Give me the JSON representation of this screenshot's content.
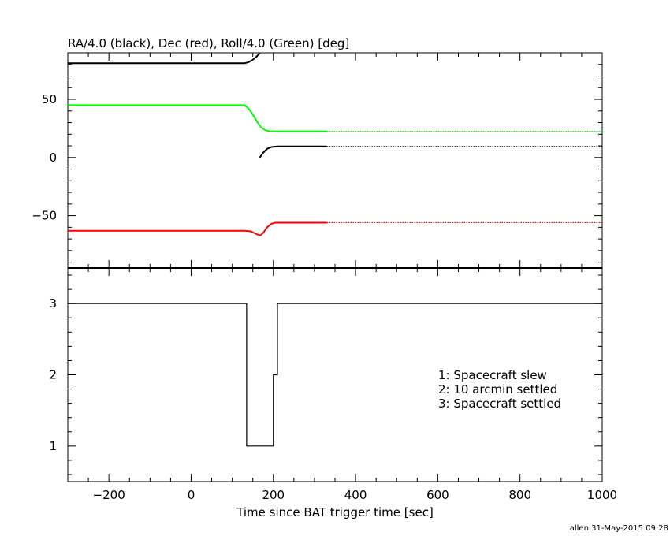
{
  "chart_data": [
    {
      "type": "line",
      "title": "RA/4.0 (black), Dec (red), Roll/4.0 (Green) [deg]",
      "xlim": [
        -300,
        1000
      ],
      "ylim": [
        -95,
        90
      ],
      "yticks": [
        -50,
        0,
        50
      ],
      "grid": false,
      "series": [
        {
          "color": "#000000",
          "segments": [
            [
              [
                -300,
                81
              ],
              [
                130,
                81
              ],
              [
                140,
                82
              ],
              [
                150,
                84
              ],
              [
                160,
                87
              ],
              [
                167,
                90
              ]
            ],
            [
              [
                167,
                0
              ],
              [
                175,
                4
              ],
              [
                185,
                7.5
              ],
              [
                195,
                9
              ],
              [
                210,
                9.5
              ],
              [
                330,
                9.5
              ]
            ]
          ],
          "dotted": [
            [
              330,
              9.5
            ],
            [
              1000,
              9.5
            ]
          ]
        },
        {
          "color": "#ff0000",
          "segments": [
            [
              [
                -300,
                -63
              ],
              [
                130,
                -63
              ],
              [
                145,
                -63.5
              ],
              [
                160,
                -66
              ],
              [
                168,
                -67
              ],
              [
                175,
                -65
              ],
              [
                185,
                -60
              ],
              [
                195,
                -57
              ],
              [
                205,
                -56
              ],
              [
                330,
                -56
              ]
            ]
          ],
          "dotted": [
            [
              330,
              -56
            ],
            [
              1000,
              -56
            ]
          ]
        },
        {
          "color": "#00ff00",
          "segments": [
            [
              [
                -300,
                45
              ],
              [
                130,
                45
              ],
              [
                140,
                42
              ],
              [
                150,
                37
              ],
              [
                160,
                31
              ],
              [
                170,
                26
              ],
              [
                180,
                23.5
              ],
              [
                190,
                22.5
              ],
              [
                330,
                22.5
              ]
            ]
          ],
          "dotted": [
            [
              330,
              22.5
            ],
            [
              1000,
              22.5
            ]
          ]
        }
      ]
    },
    {
      "type": "line",
      "xlabel": "Time since BAT trigger time [sec]",
      "xlim": [
        -300,
        1000
      ],
      "ylim": [
        0.5,
        3.5
      ],
      "xticks": [
        -200,
        0,
        200,
        400,
        600,
        800,
        1000
      ],
      "yticks": [
        1,
        2,
        3
      ],
      "grid": false,
      "series": [
        {
          "color": "#000000",
          "step": true,
          "x": [
            -300,
            135,
            200,
            210,
            1000
          ],
          "y": [
            3,
            1,
            2,
            3,
            3
          ]
        }
      ],
      "legend": {
        "placement": "center-right",
        "entries": [
          "1: Spacecraft slew",
          "2: 10 arcmin settled",
          "3: Spacecraft settled"
        ]
      }
    }
  ],
  "footer": "allen 31-May-2015 09:28"
}
